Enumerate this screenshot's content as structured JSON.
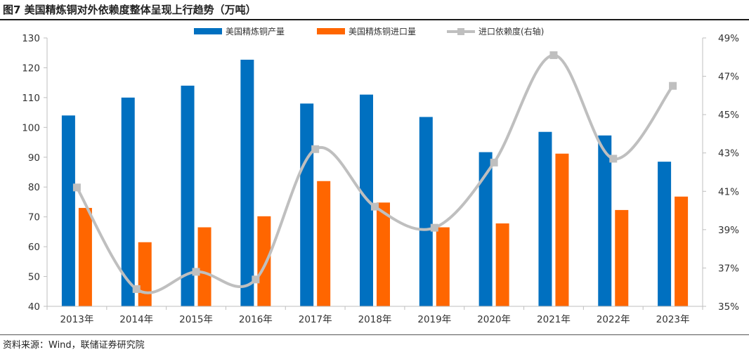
{
  "title": "图7  美国精炼铜对外依赖度整体呈现上行趋势（万吨）",
  "source": "资料来源：Wind，联储证券研究院",
  "colors": {
    "production": "#0070C0",
    "imports": "#FF6600",
    "dependence": "#BFBFBF"
  },
  "chart_data": {
    "type": "bar",
    "categories": [
      "2013年",
      "2014年",
      "2015年",
      "2016年",
      "2017年",
      "2018年",
      "2019年",
      "2020年",
      "2021年",
      "2022年",
      "2023年"
    ],
    "series": [
      {
        "name": "美国精炼铜产量",
        "type": "bar",
        "axis": "left",
        "values": [
          104,
          110,
          114,
          122.7,
          108,
          111,
          103.5,
          91.7,
          98.5,
          97.3,
          88.5
        ]
      },
      {
        "name": "美国精炼铜进口量",
        "type": "bar",
        "axis": "left",
        "values": [
          73,
          61.5,
          66.5,
          70.2,
          82,
          74.8,
          66.5,
          67.8,
          91.2,
          72.3,
          76.8
        ]
      },
      {
        "name": "进口依赖度(右轴)",
        "type": "line",
        "axis": "right",
        "values": [
          41.2,
          35.9,
          36.8,
          36.4,
          43.2,
          40.2,
          39.1,
          42.5,
          48.1,
          42.7,
          46.5
        ]
      }
    ],
    "ylim": [
      40,
      130
    ],
    "yticks": [
      40,
      50,
      60,
      70,
      80,
      90,
      100,
      110,
      120,
      130
    ],
    "y2lim": [
      35,
      49
    ],
    "y2ticks": [
      "35%",
      "37%",
      "39%",
      "41%",
      "43%",
      "45%",
      "47%",
      "49%"
    ],
    "legend_position": "top-center",
    "grid": false
  }
}
